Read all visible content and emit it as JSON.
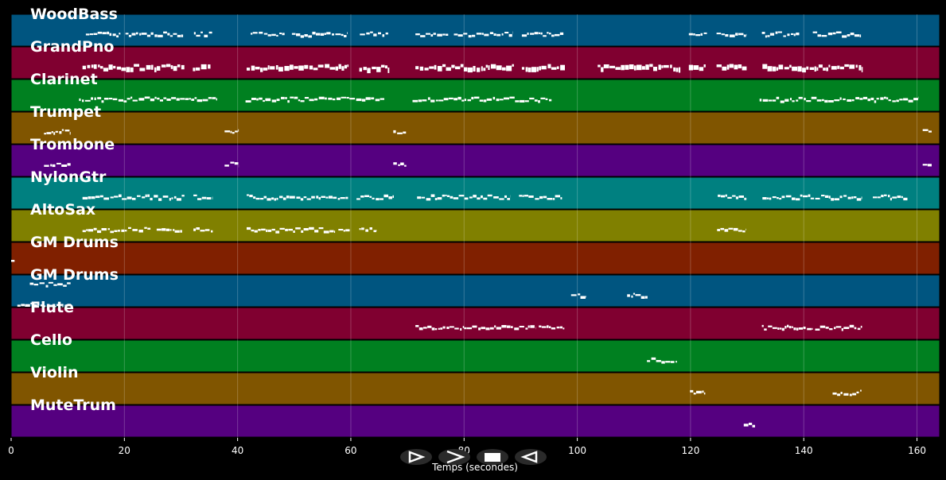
{
  "xaxis": {
    "label": "Temps (secondes)",
    "range": [
      0,
      164
    ],
    "ticks": [
      0,
      20,
      40,
      60,
      80,
      100,
      120,
      140,
      160
    ]
  },
  "tracks": [
    {
      "name": "WoodBass",
      "color": "#005580",
      "segments": [
        [
          13.2,
          19.3
        ],
        [
          20.2,
          30.4
        ],
        [
          32.3,
          35.5
        ],
        [
          42.3,
          48.3
        ],
        [
          49.6,
          59.4
        ],
        [
          61.6,
          66.6
        ],
        [
          71.4,
          77.2
        ],
        [
          78.2,
          88.6
        ],
        [
          90.2,
          97.6
        ],
        [
          119.7,
          122.9
        ],
        [
          124.6,
          129.9
        ],
        [
          132.6,
          139.2
        ],
        [
          141.6,
          150.1
        ]
      ]
    },
    {
      "name": "GrandPno",
      "color": "#800030",
      "segments": [
        [
          12.6,
          30.6
        ],
        [
          32.1,
          35.2
        ],
        [
          41.6,
          59.6
        ],
        [
          61.5,
          66.8
        ],
        [
          71.4,
          88.8
        ],
        [
          90.2,
          97.8
        ],
        [
          103.6,
          118.2
        ],
        [
          119.7,
          122.8
        ],
        [
          124.6,
          129.9
        ],
        [
          132.7,
          150.4
        ]
      ]
    },
    {
      "name": "Clarinet",
      "color": "#008020",
      "segments": [
        [
          12.0,
          36.4
        ],
        [
          41.4,
          65.9
        ],
        [
          70.9,
          95.5
        ],
        [
          132.2,
          160.3
        ]
      ]
    },
    {
      "name": "Trumpet",
      "color": "#805500",
      "segments": [
        [
          5.8,
          10.5
        ],
        [
          37.7,
          40.2
        ],
        [
          67.5,
          69.8
        ],
        [
          161.0,
          162.6
        ]
      ]
    },
    {
      "name": "Trombone",
      "color": "#550080",
      "segments": [
        [
          5.8,
          10.5
        ],
        [
          37.7,
          40.2
        ],
        [
          67.5,
          69.8
        ],
        [
          161.0,
          162.6
        ]
      ]
    },
    {
      "name": "NylonGtr",
      "color": "#008080",
      "segments": [
        [
          12.6,
          30.6
        ],
        [
          32.2,
          35.6
        ],
        [
          41.6,
          59.5
        ],
        [
          61.0,
          67.6
        ],
        [
          71.7,
          88.2
        ],
        [
          89.7,
          97.3
        ],
        [
          124.8,
          129.9
        ],
        [
          132.7,
          150.3
        ],
        [
          152.2,
          158.3
        ]
      ]
    },
    {
      "name": "AltoSax",
      "color": "#808000",
      "segments": [
        [
          12.6,
          24.6
        ],
        [
          25.7,
          30.2
        ],
        [
          32.2,
          35.6
        ],
        [
          41.6,
          57.2
        ],
        [
          57.8,
          59.8
        ],
        [
          61.5,
          64.6
        ],
        [
          124.7,
          129.8
        ]
      ]
    },
    {
      "name": "GM Drums",
      "color": "#802000",
      "segments": [
        [
          0.0,
          0.6
        ]
      ]
    },
    {
      "name": "GM Drums",
      "color": "#005580",
      "segments": [
        [
          3.3,
          10.5
        ],
        [
          1.1,
          10.5
        ],
        [
          37.7,
          40.1
        ],
        [
          67.5,
          69.8
        ],
        [
          98.9,
          101.6
        ],
        [
          108.8,
          112.4
        ],
        [
          161.0,
          162.6
        ]
      ]
    },
    {
      "name": "Flute",
      "color": "#800030",
      "segments": [
        [
          71.4,
          80.0
        ],
        [
          80.0,
          92.7
        ],
        [
          93.2,
          97.7
        ],
        [
          132.6,
          141.6
        ],
        [
          142.0,
          150.3
        ]
      ]
    },
    {
      "name": "Cello",
      "color": "#008020",
      "segments": [
        [
          112.3,
          117.6
        ]
      ]
    },
    {
      "name": "Violin",
      "color": "#805500",
      "segments": [
        [
          119.9,
          122.6
        ],
        [
          145.1,
          150.2
        ]
      ]
    },
    {
      "name": "MuteTrum",
      "color": "#550080",
      "segments": [
        [
          129.4,
          131.4
        ]
      ]
    }
  ]
}
